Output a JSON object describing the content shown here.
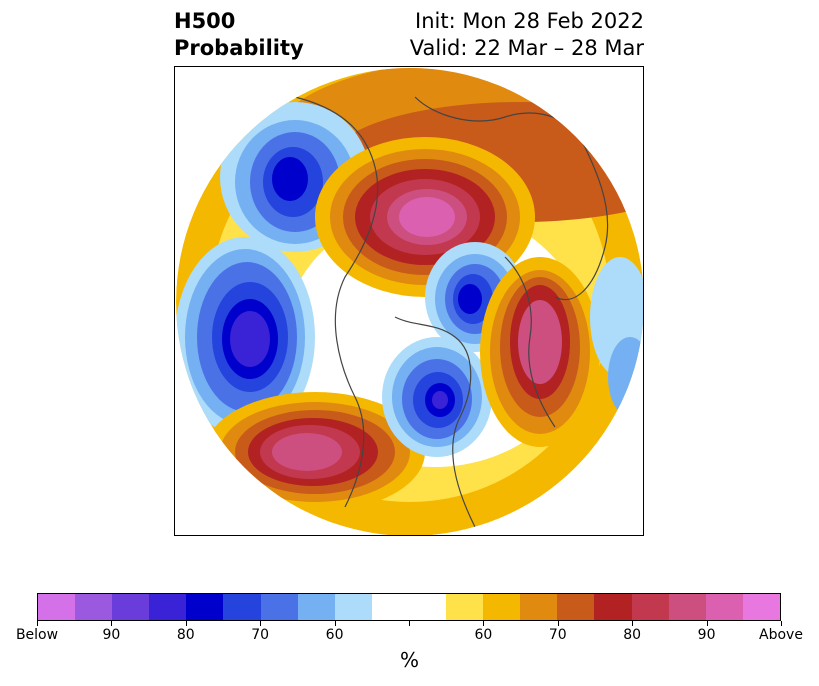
{
  "title": {
    "left_line1": "H500",
    "left_line2": "Probability",
    "right_line1": "Init: Mon 28 Feb 2022",
    "right_line2": "Valid: 22 Mar – 28 Mar"
  },
  "colorbar": {
    "colors": [
      "#d470e8",
      "#9b59e0",
      "#6a3ddb",
      "#3a22d6",
      "#0000cc",
      "#2444dd",
      "#4a72e6",
      "#74b0f2",
      "#acdcf9",
      "#ffffff",
      "#ffffff",
      "#ffe14a",
      "#f5b800",
      "#e08a10",
      "#c85a1a",
      "#b22222",
      "#c2384f",
      "#cc4f80",
      "#dc60b0",
      "#e878e0"
    ],
    "tick_labels": [
      "Below",
      "90",
      "80",
      "70",
      "60",
      "",
      "60",
      "70",
      "80",
      "90",
      "Above"
    ],
    "unit_label": "%"
  }
}
